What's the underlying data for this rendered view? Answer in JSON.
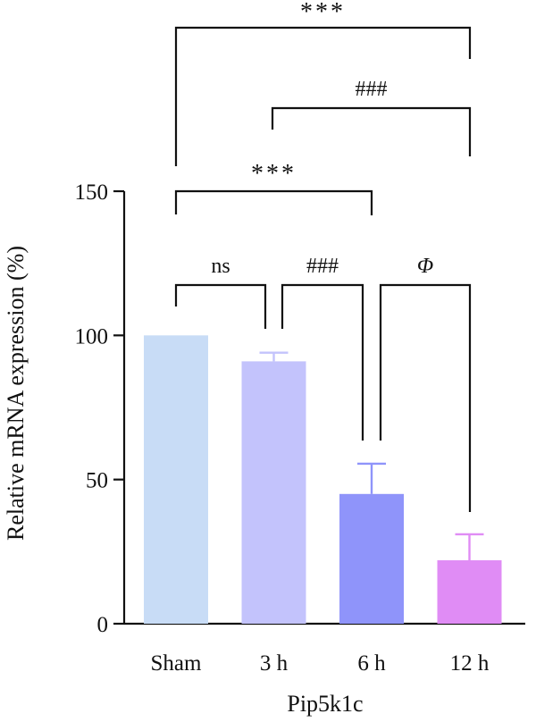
{
  "chart_data": {
    "type": "bar",
    "categories": [
      "Sham",
      "3 h",
      "6 h",
      "12 h"
    ],
    "values": [
      100,
      91,
      45,
      22
    ],
    "errors": [
      0,
      3,
      10.5,
      9
    ],
    "colors": [
      "#c8dcf6",
      "#c3c3fc",
      "#8f94fa",
      "#e08cf5"
    ],
    "ylabel": "Relative mRNA expression (%)",
    "xlabel": "Pip5k1c",
    "ylim": [
      0,
      150
    ],
    "yticks": [
      0,
      50,
      100,
      150
    ],
    "grid": false,
    "annotations": [
      {
        "from": "Sham",
        "to": "3 h",
        "label": "ns"
      },
      {
        "from": "3 h",
        "to": "6 h",
        "label": "###"
      },
      {
        "from": "6 h",
        "to": "12 h",
        "label": "Φ"
      },
      {
        "from": "Sham",
        "to": "6 h",
        "label": "***"
      },
      {
        "from": "3 h",
        "to": "12 h",
        "label": "###"
      },
      {
        "from": "Sham",
        "to": "12 h",
        "label": "***"
      }
    ]
  }
}
